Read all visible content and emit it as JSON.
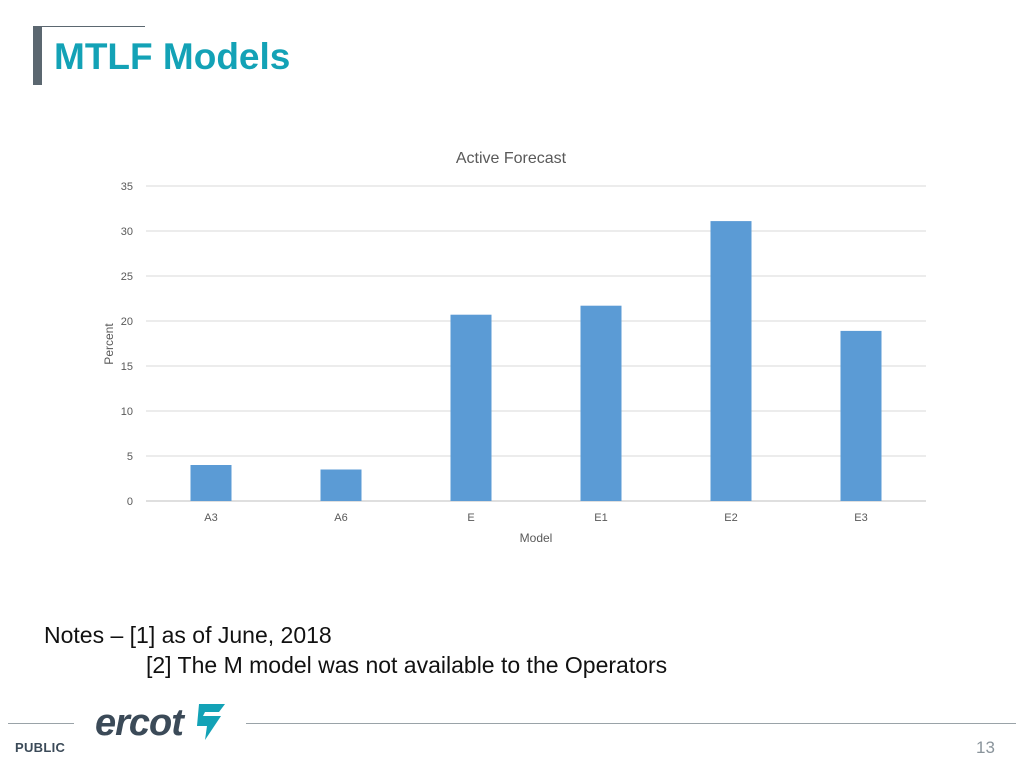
{
  "slide": {
    "title": "MTLF Models",
    "notes_prefix": "Notes –",
    "notes": [
      "[1] as of June, 2018",
      "[2] The M model was not available to the Operators"
    ],
    "footer_label": "PUBLIC",
    "page_number": "13",
    "logo_text": "ercot",
    "accent_color": "#13a2b6",
    "bar_color": "#5b9bd5"
  },
  "chart_data": {
    "type": "bar",
    "title": "Active Forecast",
    "xlabel": "Model",
    "ylabel": "Percent",
    "categories": [
      "A3",
      "A6",
      "E",
      "E1",
      "E2",
      "E3"
    ],
    "values": [
      4.0,
      3.5,
      20.7,
      21.7,
      31.1,
      18.9
    ],
    "ylim": [
      0,
      35
    ],
    "yticks": [
      0,
      5,
      10,
      15,
      20,
      25,
      30,
      35
    ],
    "grid": true,
    "legend": "none"
  }
}
